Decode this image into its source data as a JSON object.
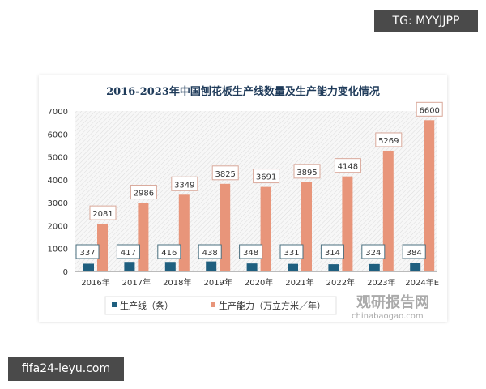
{
  "watermarks": {
    "top": "TG: MYYJJPP",
    "bottom": "fifa24-leyu.com",
    "source_logo": "观研报告网",
    "source_url": "chinabaogao.com"
  },
  "chart_data": {
    "type": "bar",
    "title": "2016-2023年中国刨花板生产线数量及生产能力变化情况",
    "categories": [
      "2016年",
      "2017年",
      "2018年",
      "2019年",
      "2020年",
      "2021年",
      "2022年",
      "2023年",
      "2024年E"
    ],
    "series": [
      {
        "name": "生产线（条）",
        "color": "#1f5f7f",
        "values": [
          337,
          417,
          416,
          438,
          348,
          331,
          314,
          324,
          384
        ]
      },
      {
        "name": "生产能力（万立方米／年）",
        "color": "#e8957a",
        "values": [
          2081,
          2986,
          3349,
          3825,
          3691,
          3895,
          4148,
          5269,
          6600
        ]
      }
    ],
    "ylim": [
      0,
      7000
    ],
    "yticks": [
      0,
      1000,
      2000,
      3000,
      4000,
      5000,
      6000,
      7000
    ],
    "grid": false,
    "legend": "bottom"
  }
}
